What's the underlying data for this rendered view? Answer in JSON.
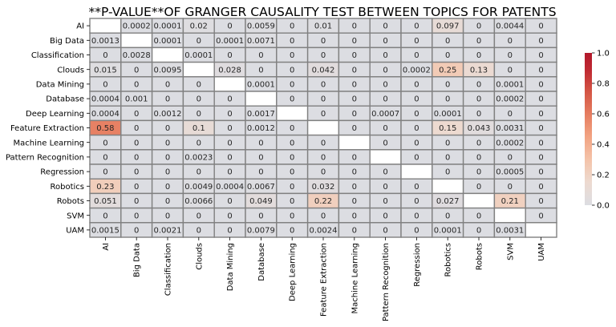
{
  "chart_data": {
    "type": "heatmap",
    "title": "**P-VALUE**OF GRANGER CAUSALITY TEST BETWEEN TOPICS FOR PATENTS",
    "rows": [
      "AI",
      "Big Data",
      "Classification",
      "Clouds",
      "Data Mining",
      "Database",
      "Deep Learning",
      "Feature Extraction",
      "Machine Learning",
      "Pattern Recognition",
      "Regression",
      "Robotics",
      "Robots",
      "SVM",
      "UAM"
    ],
    "columns": [
      "AI",
      "Big Data",
      "Classification",
      "Clouds",
      "Data Mining",
      "Database",
      "Deep Learning",
      "Feature Extraction",
      "Machine Learning",
      "Pattern Recognition",
      "Regression",
      "Robotics",
      "Robots",
      "SVM",
      "UAM"
    ],
    "values": [
      [
        null,
        "0.0002",
        "0.0001",
        "0.02",
        "0",
        "0.0059",
        "0",
        "0.01",
        "0",
        "0",
        "0",
        "0.097",
        "0",
        "0.0044",
        "0"
      ],
      [
        "0.0013",
        null,
        "0.0001",
        "0",
        "0.0001",
        "0.0071",
        "0",
        "0",
        "0",
        "0",
        "0",
        "0",
        "0",
        "0",
        "0"
      ],
      [
        "0",
        "0.0028",
        null,
        "0.0001",
        "0",
        "0",
        "0",
        "0",
        "0",
        "0",
        "0",
        "0",
        "0",
        "0",
        "0"
      ],
      [
        "0.015",
        "0",
        "0.0095",
        null,
        "0.028",
        "0",
        "0",
        "0.042",
        "0",
        "0",
        "0.0002",
        "0.25",
        "0.13",
        "0",
        "0"
      ],
      [
        "0",
        "0",
        "0",
        "0",
        null,
        "0.0001",
        "0",
        "0",
        "0",
        "0",
        "0",
        "0",
        "0",
        "0.0001",
        "0"
      ],
      [
        "0.0004",
        "0.001",
        "0",
        "0",
        "0",
        null,
        "0",
        "0",
        "0",
        "0",
        "0",
        "0",
        "0",
        "0.0002",
        "0"
      ],
      [
        "0.0004",
        "0",
        "0.0012",
        "0",
        "0",
        "0.0017",
        null,
        "0",
        "0",
        "0.0007",
        "0",
        "0.0001",
        "0",
        "0",
        "0"
      ],
      [
        "0.58",
        "0",
        "0",
        "0.1",
        "0",
        "0.0012",
        "0",
        null,
        "0",
        "0",
        "0",
        "0.15",
        "0.043",
        "0.0031",
        "0"
      ],
      [
        "0",
        "0",
        "0",
        "0",
        "0",
        "0",
        "0",
        "0",
        null,
        "0",
        "0",
        "0",
        "0",
        "0.0002",
        "0"
      ],
      [
        "0",
        "0",
        "0",
        "0.0023",
        "0",
        "0",
        "0",
        "0",
        "0",
        null,
        "0",
        "0",
        "0",
        "0",
        "0"
      ],
      [
        "0",
        "0",
        "0",
        "0",
        "0",
        "0",
        "0",
        "0",
        "0",
        "0",
        null,
        "0",
        "0",
        "0.0005",
        "0"
      ],
      [
        "0.23",
        "0",
        "0",
        "0.0049",
        "0.0004",
        "0.0067",
        "0",
        "0.032",
        "0",
        "0",
        "0",
        null,
        "0",
        "0",
        "0"
      ],
      [
        "0.051",
        "0",
        "0",
        "0.0066",
        "0",
        "0.049",
        "0",
        "0.22",
        "0",
        "0",
        "0",
        "0.027",
        null,
        "0.21",
        "0"
      ],
      [
        "0",
        "0",
        "0",
        "0",
        "0",
        "0",
        "0",
        "0",
        "0",
        "0",
        "0",
        "0",
        "0",
        null,
        "0"
      ],
      [
        "0.0015",
        "0",
        "0.0021",
        "0",
        "0",
        "0.0079",
        "0",
        "0.0024",
        "0",
        "0",
        "0",
        "0.0001",
        "0",
        "0.0031",
        null
      ]
    ],
    "colorbar": {
      "range": [
        0.0,
        1.0
      ],
      "ticks": [
        "0.0",
        "0.2",
        "0.4",
        "0.6",
        "0.8",
        "1.0"
      ],
      "low_color": "#dcdde2",
      "high_color": "#b2182b"
    },
    "grid_color": "#808080"
  }
}
